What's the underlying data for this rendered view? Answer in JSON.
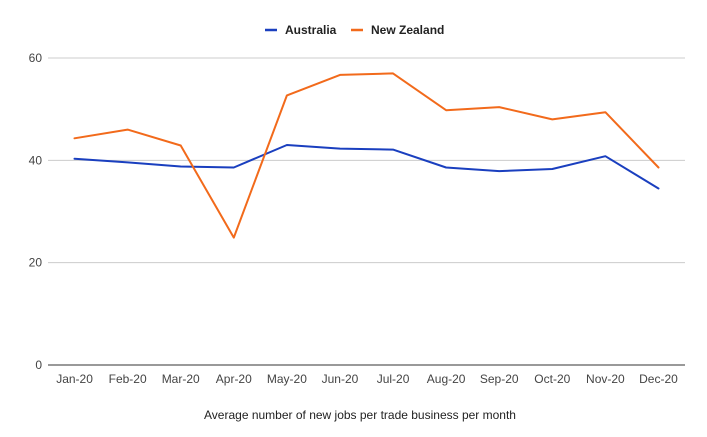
{
  "chart_data": {
    "type": "line",
    "title": "",
    "xlabel": "Average number of new jobs per trade business per month",
    "ylabel": "",
    "categories": [
      "Jan-20",
      "Feb-20",
      "Mar-20",
      "Apr-20",
      "May-20",
      "Jun-20",
      "Jul-20",
      "Aug-20",
      "Sep-20",
      "Oct-20",
      "Nov-20",
      "Dec-20"
    ],
    "ylim": [
      0,
      60
    ],
    "yticks": [
      0,
      20,
      40,
      60
    ],
    "grid": true,
    "legend_position": "top",
    "series": [
      {
        "name": "Australia",
        "color": "#1a3fbf",
        "values": [
          40.3,
          39.6,
          38.8,
          38.6,
          43.0,
          42.3,
          42.1,
          38.6,
          37.9,
          38.3,
          40.8,
          34.5
        ]
      },
      {
        "name": "New Zealand",
        "color": "#f26a1b",
        "values": [
          44.3,
          46.0,
          42.9,
          24.9,
          52.7,
          56.7,
          57.0,
          49.8,
          50.4,
          48.0,
          49.4,
          38.6
        ]
      }
    ]
  }
}
